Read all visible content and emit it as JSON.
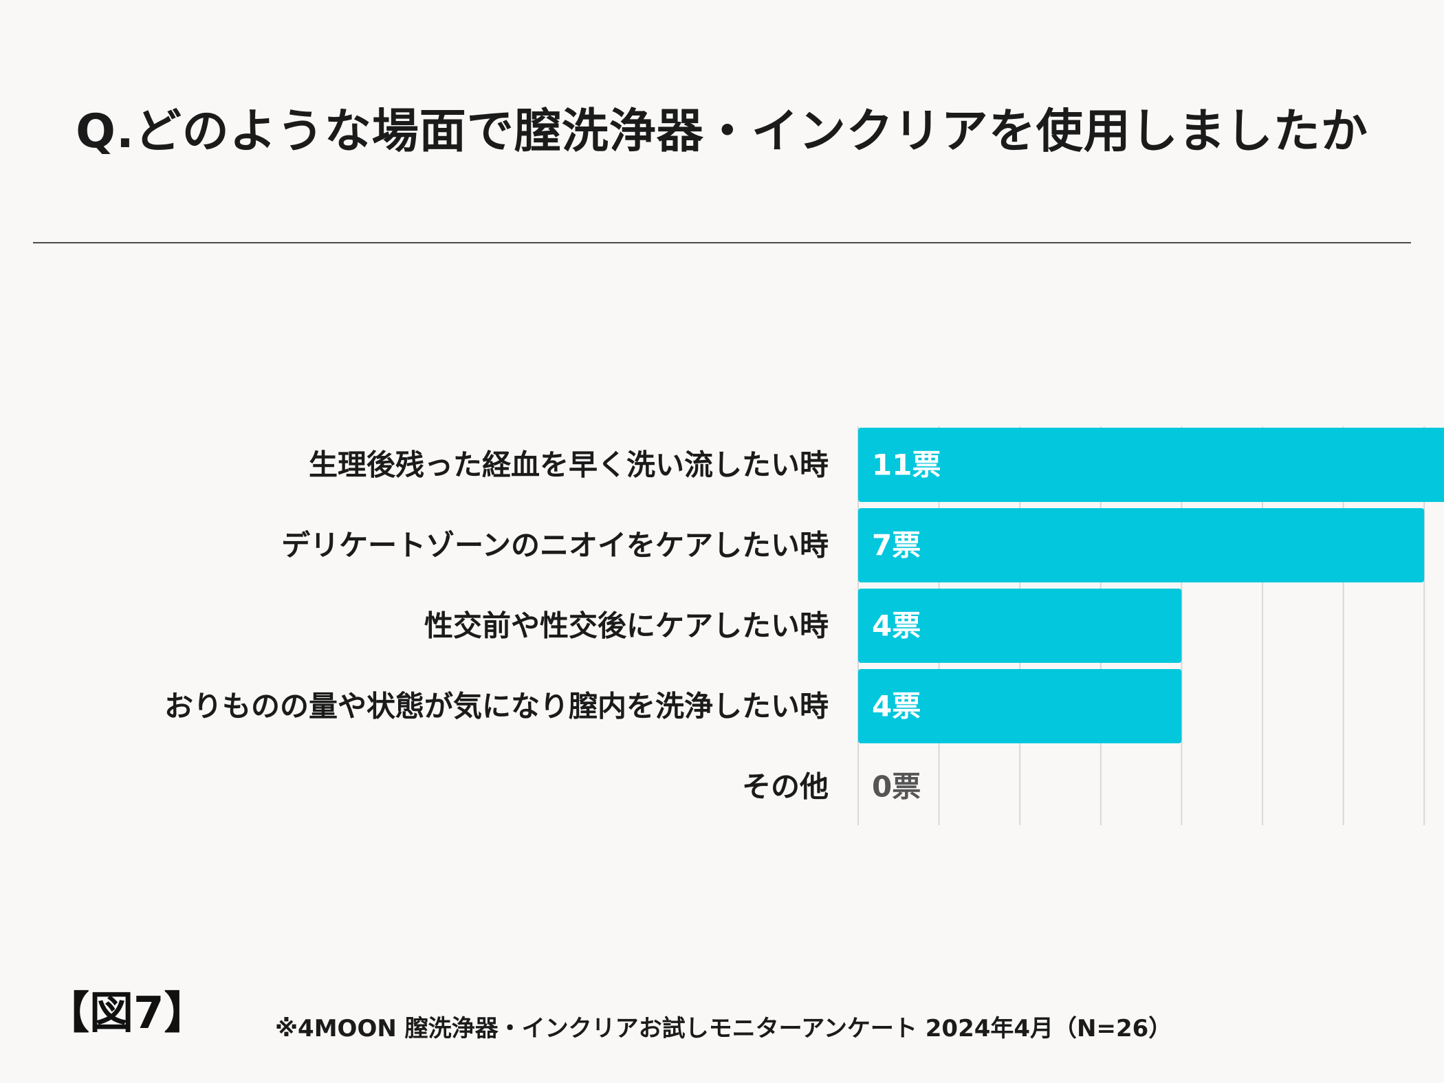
{
  "title": "Q.どのような場面で膣洗浄器・インクリアを使用しましたか",
  "figure_label": "【図7】",
  "source_note": "※4MOON 膣洗浄器・インクリアお試しモニターアンケート 2024年4月（N=26）",
  "colors": {
    "bar": "#03c7dc",
    "value_inside": "#ffffff",
    "value_outside": "#555555",
    "grid": "#d8d8d8"
  },
  "chart_data": {
    "type": "bar",
    "orientation": "horizontal",
    "categories": [
      "生理後残った経血を早く洗い流したい時",
      "デリケートゾーンのニオイをケアしたい時",
      "性交前や性交後にケアしたい時",
      "おりものの量や状態が気になり膣内を洗浄したい時",
      "その他"
    ],
    "values": [
      11,
      7,
      4,
      4,
      0
    ],
    "value_labels": [
      "11票",
      "7票",
      "4票",
      "4票",
      "0票"
    ],
    "xlim": [
      0,
      12
    ],
    "grid": true,
    "legend": "none"
  }
}
